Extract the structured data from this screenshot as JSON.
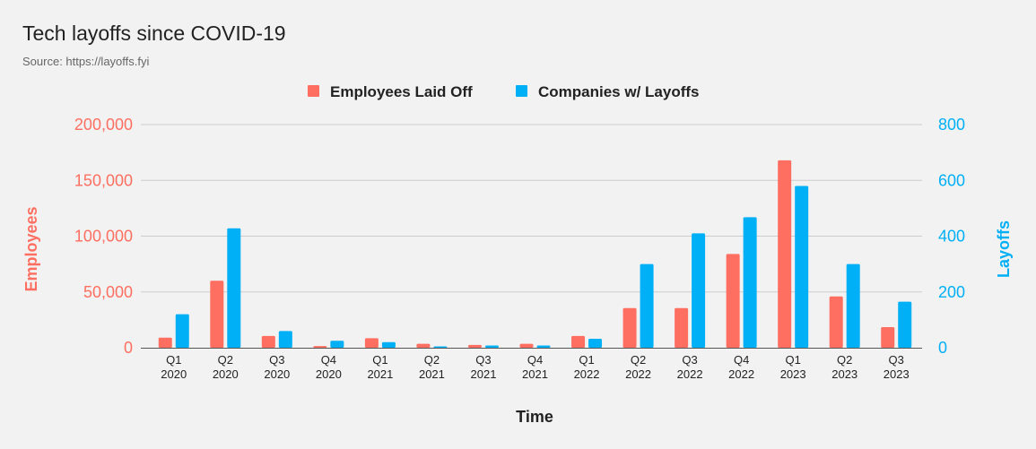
{
  "chart_data": {
    "type": "bar",
    "title": "Tech layoffs since COVID-19",
    "subtitle": "Source: https://layoffs.fyi",
    "xlabel": "Time",
    "ylabel_left": "Employees",
    "ylabel_right": "Layoffs",
    "legend_position": "top-center",
    "grid": true,
    "categories": [
      [
        "Q1",
        "2020"
      ],
      [
        "Q2",
        "2020"
      ],
      [
        "Q3",
        "2020"
      ],
      [
        "Q4",
        "2020"
      ],
      [
        "Q1",
        "2021"
      ],
      [
        "Q2",
        "2021"
      ],
      [
        "Q3",
        "2021"
      ],
      [
        "Q4",
        "2021"
      ],
      [
        "Q1",
        "2022"
      ],
      [
        "Q2",
        "2022"
      ],
      [
        "Q3",
        "2022"
      ],
      [
        "Q4",
        "2022"
      ],
      [
        "Q1",
        "2023"
      ],
      [
        "Q2",
        "2023"
      ],
      [
        "Q3",
        "2023"
      ]
    ],
    "y_left": {
      "range": [
        0,
        200000
      ],
      "ticks": [
        0,
        50000,
        100000,
        150000,
        200000
      ],
      "tick_labels": [
        "0",
        "50,000",
        "100,000",
        "150,000",
        "200,000"
      ]
    },
    "y_right": {
      "range": [
        0,
        800
      ],
      "ticks": [
        0,
        200,
        400,
        600,
        800
      ],
      "tick_labels": [
        "0",
        "200",
        "400",
        "600",
        "800"
      ]
    },
    "series": [
      {
        "name": "Employees Laid Off",
        "axis": "left",
        "color": "#ff6f61",
        "values": [
          9000,
          60000,
          10500,
          1500,
          8500,
          3500,
          2500,
          3500,
          10500,
          35500,
          35500,
          84000,
          168000,
          46000,
          18500
        ]
      },
      {
        "name": "Companies w/ Layoffs",
        "axis": "right",
        "color": "#00b0f6",
        "values": [
          120,
          428,
          60,
          25,
          20,
          5,
          8,
          8,
          32,
          300,
          410,
          468,
          580,
          300,
          165
        ]
      }
    ]
  }
}
